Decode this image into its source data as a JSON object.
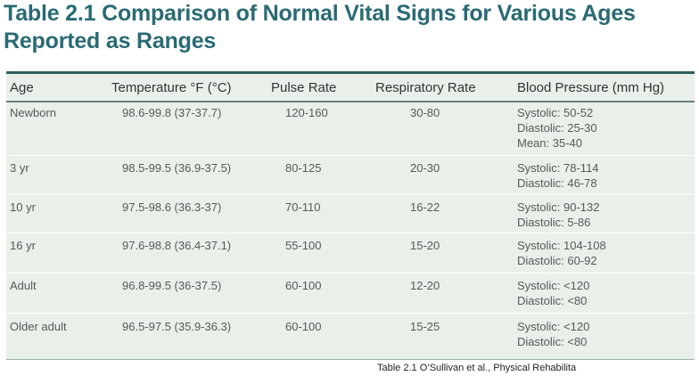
{
  "title": "Table 2.1 Comparison of Normal Vital Signs for Various Ages Reported as Ranges",
  "table": {
    "headers": {
      "age": "Age",
      "temperature": "Temperature °F (°C)",
      "pulse": "Pulse Rate",
      "respiratory": "Respiratory Rate",
      "blood_pressure": "Blood Pressure (mm Hg)"
    },
    "rows": [
      {
        "age": "Newborn",
        "temperature": "98.6-99.8 (37-37.7)",
        "pulse": "120-160",
        "respiratory": "30-80",
        "bp": [
          "Systolic: 50-52",
          "Diastolic: 25-30",
          "Mean: 35-40"
        ]
      },
      {
        "age": "3 yr",
        "temperature": "98.5-99.5 (36.9-37.5)",
        "pulse": "80-125",
        "respiratory": "20-30",
        "bp": [
          "Systolic: 78-114",
          "Diastolic: 46-78"
        ]
      },
      {
        "age": "10 yr",
        "temperature": "97.5-98.6 (36.3-37)",
        "pulse": "70-110",
        "respiratory": "16-22",
        "bp": [
          "Systolic: 90-132",
          "Diastolic: 5-86"
        ]
      },
      {
        "age": "16 yr",
        "temperature": "97.6-98.8 (36.4-37.1)",
        "pulse": "55-100",
        "respiratory": "15-20",
        "bp": [
          "Systolic: 104-108",
          "Diastolic: 60-92"
        ]
      },
      {
        "age": "Adult",
        "temperature": "96.8-99.5 (36-37.5)",
        "pulse": "60-100",
        "respiratory": "12-20",
        "bp": [
          "Systolic: <120",
          "Diastolic: <80"
        ]
      },
      {
        "age": "Older adult",
        "temperature": "96.5-97.5 (35.9-36.3)",
        "pulse": "60-100",
        "respiratory": "15-25",
        "bp": [
          "Systolic: <120",
          "Diastolic: <80"
        ]
      }
    ]
  },
  "caption": "Table 2.1 O’Sullivan et al., Physical Rehabilita",
  "colors": {
    "title": "#2a6a74",
    "table_background": "#e9f0ea",
    "table_top_rule": "#2f5f60"
  }
}
